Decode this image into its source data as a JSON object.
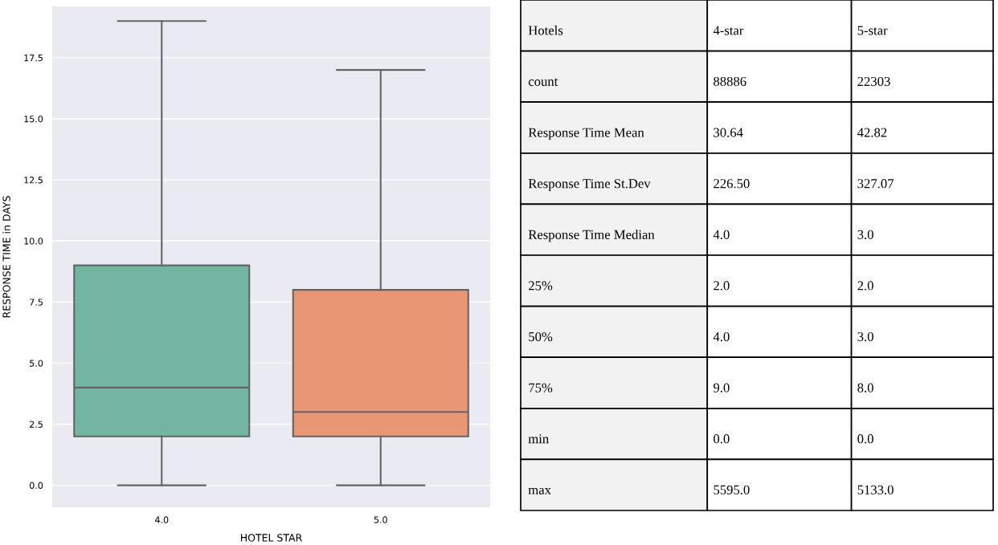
{
  "chart_data": [
    {
      "type": "box",
      "categories": [
        "4.0",
        "5.0"
      ],
      "xlabel": "HOTEL STAR",
      "ylabel": "RESPONSE TIME in DAYS",
      "boxes": [
        {
          "low": 0,
          "q1": 2,
          "median": 4,
          "q3": 9,
          "high": 19
        },
        {
          "low": 0,
          "q1": 2,
          "median": 3,
          "q3": 8,
          "high": 17
        }
      ],
      "colors": [
        "#72b6a1",
        "#e99675"
      ],
      "ylim": [
        -0.9,
        19.6
      ],
      "yticks": [
        {
          "value": 0,
          "label": "0.0"
        },
        2.5,
        {
          "value": 5,
          "label": "5.0"
        },
        7.5,
        {
          "value": 10,
          "label": "10.0"
        },
        12.5,
        {
          "value": 15,
          "label": "15.0"
        },
        17.5
      ],
      "grid": "y"
    },
    {
      "type": "other",
      "annotations": [
        "Hotels",
        "4-star",
        "5-star",
        "count",
        "88886",
        "22303",
        "Response Time Mean",
        "30.64",
        "42.82",
        "Response Time St.Dev",
        "226.50",
        "327.07",
        "Response Time Median",
        "4.0",
        "3.0",
        "25%",
        "2.0",
        "2.0",
        "50%",
        "4.0",
        "3.0",
        "75%",
        "9.0",
        "8.0",
        "min",
        "0.0",
        "0.0",
        "max",
        "5595.0",
        "5133.0"
      ]
    }
  ]
}
